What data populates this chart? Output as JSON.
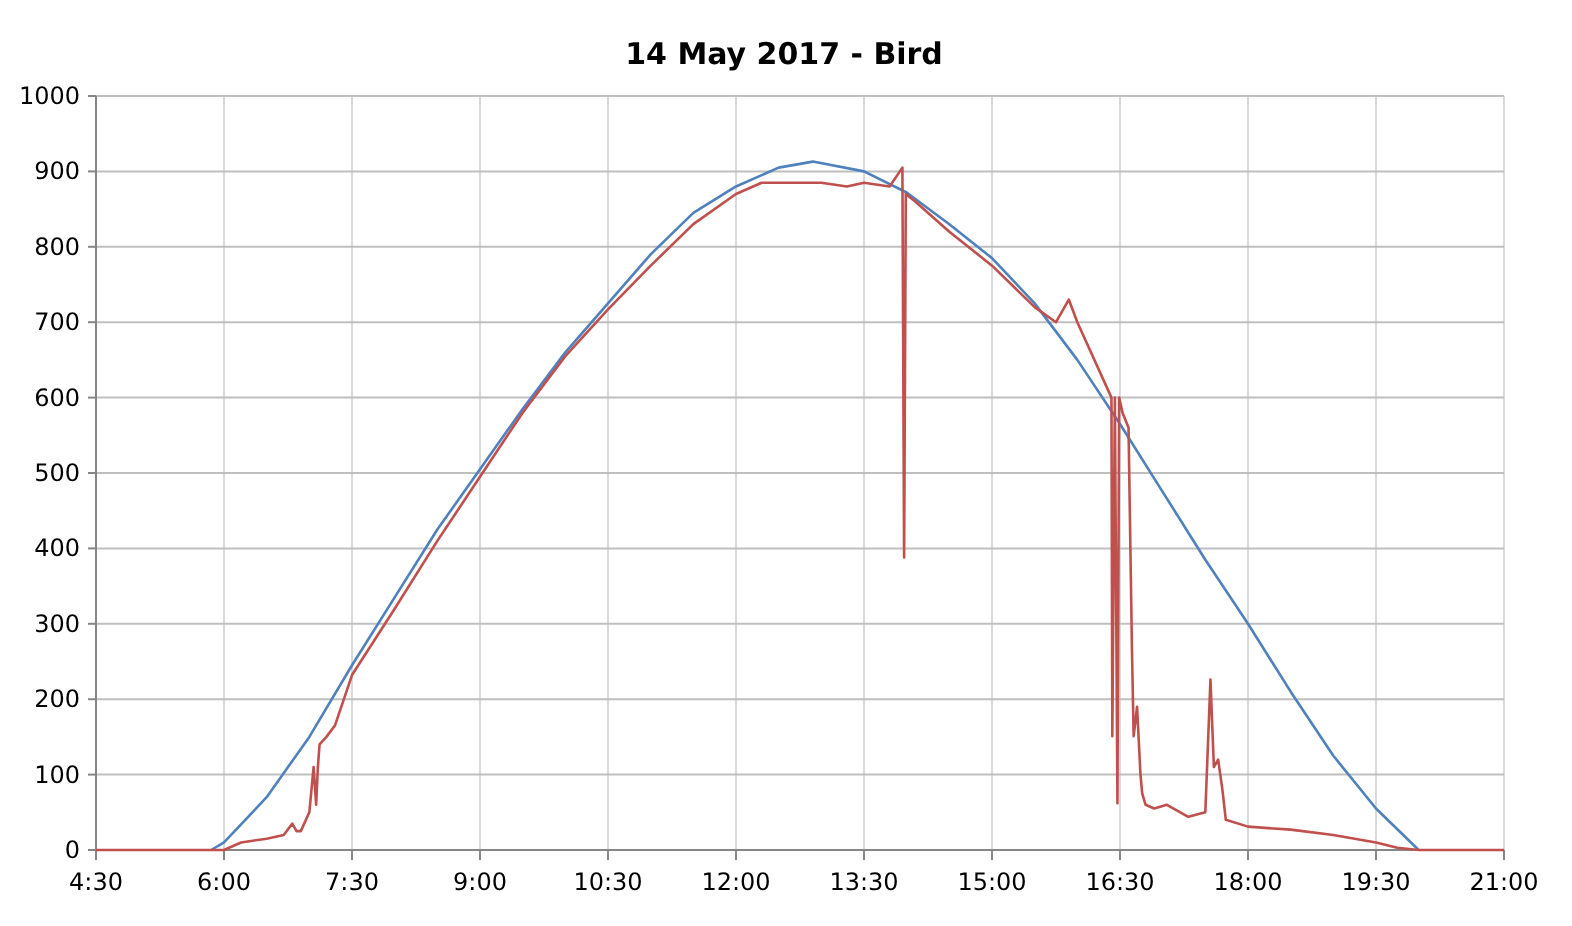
{
  "chart_data": {
    "type": "line",
    "title": "14 May 2017 - Bird",
    "grid": true,
    "marker": "none",
    "line_style": "solid",
    "xlim": [
      4.5,
      21
    ],
    "xticks": [
      {
        "value": 4.5,
        "label": "4:30"
      },
      {
        "value": 6,
        "label": "6:00"
      },
      {
        "value": 7.5,
        "label": "7:30"
      },
      {
        "value": 9,
        "label": "9:00"
      },
      {
        "value": 10.5,
        "label": "10:30"
      },
      {
        "value": 12,
        "label": "12:00"
      },
      {
        "value": 13.5,
        "label": "13:30"
      },
      {
        "value": 15,
        "label": "15:00"
      },
      {
        "value": 16.5,
        "label": "16:30"
      },
      {
        "value": 18,
        "label": "18:00"
      },
      {
        "value": 19.5,
        "label": "19:30"
      },
      {
        "value": 21,
        "label": "21:00"
      }
    ],
    "ylim": [
      0,
      1000
    ],
    "yticks": [
      0,
      100,
      200,
      300,
      400,
      500,
      600,
      700,
      800,
      900,
      1000
    ],
    "series": [
      {
        "color": "#4f81bd",
        "x": [
          5.85,
          6,
          6.5,
          7,
          7.5,
          8,
          8.5,
          9,
          9.5,
          10,
          10.5,
          11,
          11.5,
          12,
          12.5,
          12.9,
          13.5,
          14,
          14.5,
          15,
          15.5,
          16,
          16.5,
          17,
          17.5,
          18,
          18.5,
          19,
          19.5,
          20
        ],
        "values": [
          0,
          10,
          70,
          150,
          245,
          335,
          425,
          505,
          585,
          660,
          725,
          790,
          845,
          880,
          905,
          913,
          900,
          872,
          830,
          785,
          725,
          650,
          565,
          475,
          385,
          300,
          210,
          125,
          55,
          0
        ]
      },
      {
        "color": "#c0504d",
        "x": [
          4.5,
          6,
          6.2,
          6.5,
          6.7,
          6.8,
          6.85,
          6.9,
          7,
          7.05,
          7.08,
          7.1,
          7.12,
          7.2,
          7.3,
          7.5,
          8,
          8.5,
          9,
          9.5,
          10,
          10.5,
          11,
          11.5,
          12,
          12.3,
          12.5,
          13,
          13.3,
          13.5,
          13.8,
          13.95,
          13.97,
          13.99,
          14.1,
          14.5,
          15,
          15.5,
          15.75,
          15.9,
          16,
          16.4,
          16.41,
          16.44,
          16.47,
          16.49,
          16.53,
          16.6,
          16.64,
          16.66,
          16.7,
          16.74,
          16.76,
          16.8,
          16.9,
          17.05,
          17.3,
          17.5,
          17.56,
          17.6,
          17.65,
          17.7,
          17.74,
          18,
          18.5,
          19,
          19.5,
          19.75,
          20,
          21
        ],
        "values": [
          0,
          0,
          10,
          15,
          20,
          35,
          25,
          25,
          50,
          110,
          60,
          110,
          140,
          150,
          165,
          232,
          320,
          410,
          495,
          580,
          655,
          717,
          775,
          830,
          870,
          885,
          885,
          885,
          880,
          885,
          880,
          905,
          388,
          870,
          860,
          820,
          775,
          720,
          700,
          730,
          700,
          600,
          151,
          600,
          62,
          600,
          580,
          560,
          267,
          151,
          190,
          100,
          75,
          60,
          55,
          60,
          44,
          50,
          226,
          110,
          120,
          80,
          40,
          31,
          27,
          20,
          10,
          3,
          0,
          0
        ]
      }
    ]
  }
}
